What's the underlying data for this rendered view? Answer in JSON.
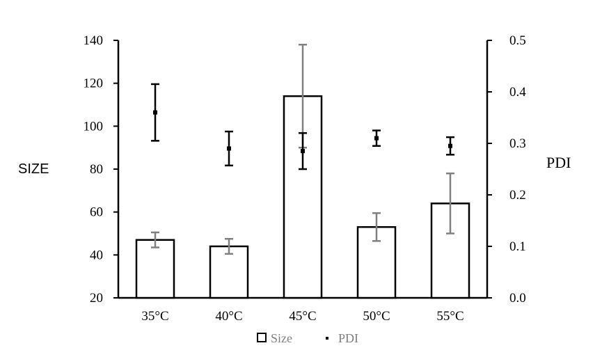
{
  "chart_data": {
    "type": "bar",
    "title": "",
    "categories": [
      "35°C",
      "40°C",
      "45°C",
      "50°C",
      "55°C"
    ],
    "xlabel": "",
    "ylabel": "SIZE",
    "y2label": "PDI",
    "ylim": [
      20,
      140
    ],
    "y2lim": [
      0.0,
      0.5
    ],
    "yticks": [
      "20",
      "40",
      "60",
      "80",
      "100",
      "120",
      "140"
    ],
    "y2ticks": [
      "0.0",
      "0.1",
      "0.2",
      "0.3",
      "0.4",
      "0.5"
    ],
    "grid": false,
    "legend_position": "bottom",
    "series": [
      {
        "name": "Size",
        "type": "bar",
        "axis": "left",
        "values": [
          47,
          44,
          114,
          53,
          64
        ],
        "errors": [
          3.5,
          3.5,
          24,
          6.5,
          14
        ],
        "fill": "#ffffff",
        "edge": "#000000",
        "error_color": "#808080"
      },
      {
        "name": "PDI",
        "type": "scatter",
        "axis": "right",
        "values": [
          0.36,
          0.29,
          0.285,
          0.31,
          0.295
        ],
        "errors": [
          0.055,
          0.033,
          0.035,
          0.015,
          0.017
        ],
        "marker_color": "#000000",
        "error_color": "#000000"
      }
    ]
  }
}
